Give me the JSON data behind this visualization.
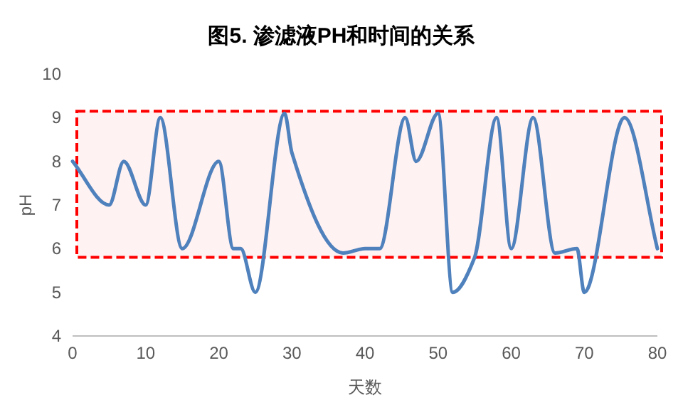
{
  "chart_data": {
    "type": "line",
    "title": "图5. 渗滤液PH和时间的关系",
    "xlabel": "天数",
    "ylabel": "pH",
    "xlim": [
      0,
      80
    ],
    "ylim": [
      4,
      10
    ],
    "xticks": [
      0,
      10,
      20,
      30,
      40,
      50,
      60,
      70,
      80
    ],
    "yticks": [
      4,
      5,
      6,
      7,
      8,
      9,
      10
    ],
    "bands": [
      {
        "axis": "y",
        "from": 5.8,
        "to": 9.15,
        "color": "#ff0000"
      }
    ],
    "series": [
      {
        "color": "#4f81bd",
        "x": [
          0,
          5,
          7,
          10,
          12,
          15,
          20,
          22,
          23,
          25,
          29,
          30,
          37,
          40,
          42,
          45.5,
          47,
          50,
          52,
          55,
          58,
          60,
          63,
          66,
          69,
          70,
          75.5,
          80
        ],
        "values": [
          8,
          7,
          8,
          7,
          9,
          6,
          8,
          6,
          6,
          5,
          9.1,
          8.2,
          5.9,
          6,
          6,
          9,
          8,
          9.1,
          5,
          5.8,
          9,
          6,
          9,
          5.9,
          6,
          5,
          9,
          6
        ]
      }
    ]
  }
}
